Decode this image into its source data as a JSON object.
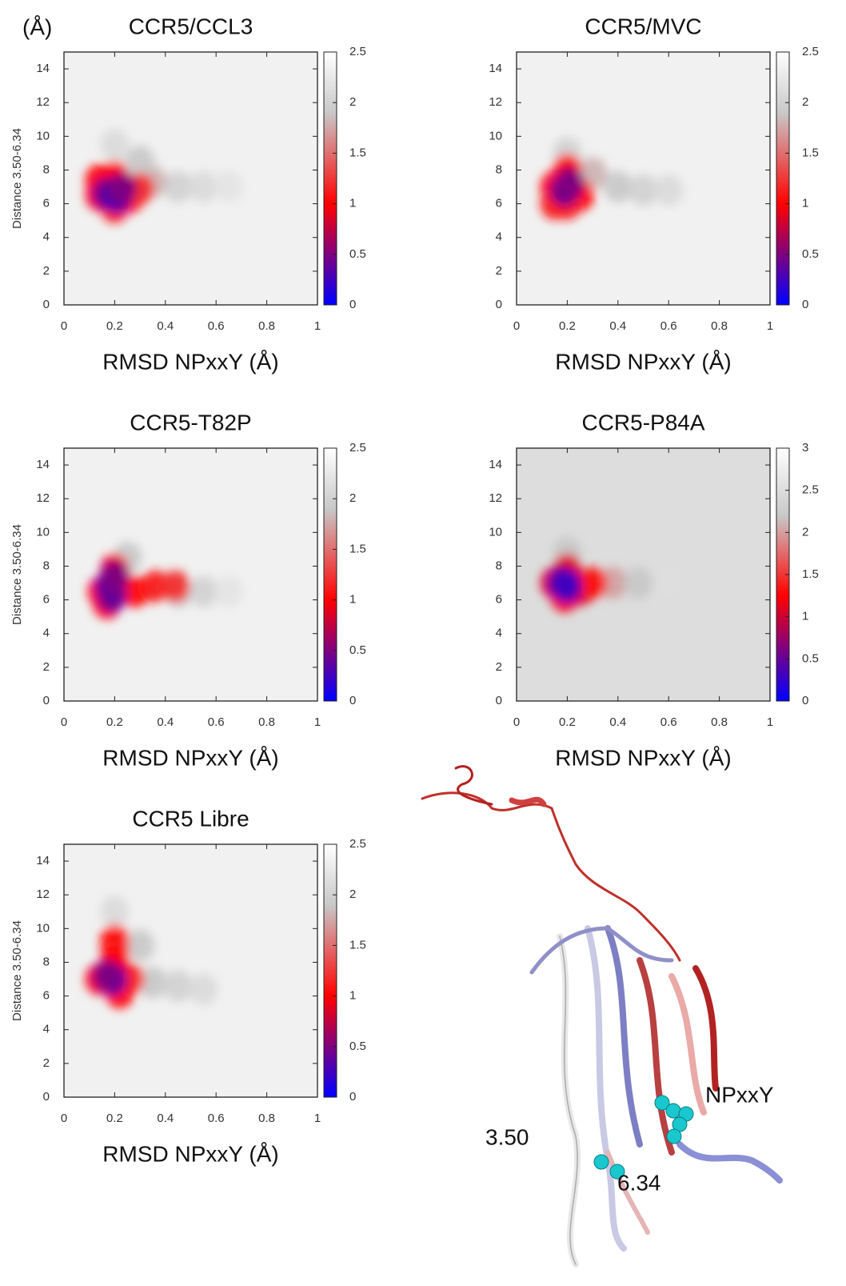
{
  "annotation": "(Å)",
  "chart_data": [
    {
      "type": "heatmap",
      "title": "CCR5/CCL3",
      "xlabel": "RMSD NPxxY (Å)",
      "ylabel": "Distance 3.50-6.34",
      "xlim": [
        0,
        1
      ],
      "xticks": [
        0,
        0.2,
        0.4,
        0.6,
        0.8,
        1
      ],
      "ylim": [
        0,
        15
      ],
      "yticks": [
        0,
        2,
        4,
        6,
        8,
        10,
        12,
        14
      ],
      "clim": [
        0,
        2.5
      ],
      "cticks": [
        0,
        0.5,
        1,
        1.5,
        2,
        2.5
      ],
      "colors": [
        "#0000ff",
        "#ff0000",
        "#c8c8c8",
        "#ffffff"
      ],
      "color_stops": [
        0,
        1,
        1.9,
        2.5
      ],
      "background_value": 2.35,
      "x": [
        0.45,
        0.55,
        0.35,
        0.3,
        0.65,
        0.2,
        0.14,
        0.2,
        0.26,
        0.3,
        0.14,
        0.2,
        0.17,
        0.21,
        0.23
      ],
      "y": [
        7,
        7,
        7.3,
        8.5,
        7,
        9.5,
        6.5,
        7.6,
        6.4,
        6.9,
        7.4,
        5.8,
        6.6,
        6.4,
        6.9
      ],
      "values": [
        2.0,
        2.1,
        1.8,
        1.9,
        2.2,
        2.1,
        1.0,
        1.0,
        1.0,
        1.2,
        1.0,
        1.1,
        0.4,
        0.3,
        0.5
      ]
    },
    {
      "type": "heatmap",
      "title": "CCR5/MVC",
      "xlabel": "RMSD NPxxY (Å)",
      "xlim": [
        0,
        1
      ],
      "xticks": [
        0,
        0.2,
        0.4,
        0.6,
        0.8,
        1
      ],
      "ylim": [
        0,
        15
      ],
      "yticks": [
        0,
        2,
        4,
        6,
        8,
        10,
        12,
        14
      ],
      "clim": [
        0,
        2.5
      ],
      "cticks": [
        0,
        0.5,
        1,
        1.5,
        2,
        2.5
      ],
      "colors": [
        "#0000ff",
        "#ff0000",
        "#c8c8c8",
        "#ffffff"
      ],
      "color_stops": [
        0,
        1,
        1.9,
        2.5
      ],
      "background_value": 2.35,
      "x": [
        0.4,
        0.5,
        0.6,
        0.3,
        0.2,
        0.15,
        0.2,
        0.25,
        0.2,
        0.15,
        0.19,
        0.21
      ],
      "y": [
        7,
        6.8,
        6.8,
        7.8,
        9,
        7,
        8,
        6.5,
        6,
        6,
        6.8,
        7.2
      ],
      "values": [
        1.9,
        2.0,
        2.1,
        1.8,
        2.0,
        1.0,
        1.0,
        1.0,
        1.1,
        1.1,
        0.4,
        0.5
      ]
    },
    {
      "type": "heatmap",
      "title": "CCR5-T82P",
      "xlabel": "RMSD NPxxY (Å)",
      "ylabel": "Distance 3.50-6.34",
      "xlim": [
        0,
        1
      ],
      "xticks": [
        0,
        0.2,
        0.4,
        0.6,
        0.8,
        1
      ],
      "ylim": [
        0,
        15
      ],
      "yticks": [
        0,
        2,
        4,
        6,
        8,
        10,
        12,
        14
      ],
      "clim": [
        0,
        2.5
      ],
      "cticks": [
        0,
        0.5,
        1,
        1.5,
        2,
        2.5
      ],
      "colors": [
        "#0000ff",
        "#ff0000",
        "#c8c8c8",
        "#ffffff"
      ],
      "color_stops": [
        0,
        1,
        1.9,
        2.5
      ],
      "background_value": 2.35,
      "x": [
        0.45,
        0.55,
        0.65,
        0.25,
        0.15,
        0.2,
        0.28,
        0.36,
        0.44,
        0.17,
        0.18,
        0.19,
        0.2
      ],
      "y": [
        6.5,
        6.5,
        6.5,
        8.5,
        6.5,
        7.8,
        6.5,
        6.8,
        6.8,
        5.8,
        6.8,
        6.2,
        7.4
      ],
      "values": [
        1.9,
        2.0,
        2.2,
        1.9,
        1.0,
        1.0,
        1.0,
        1.1,
        1.2,
        1.0,
        0.3,
        0.4,
        0.5
      ]
    },
    {
      "type": "heatmap",
      "title": "CCR5-P84A",
      "xlabel": "RMSD NPxxY (Å)",
      "xlim": [
        0,
        1
      ],
      "xticks": [
        0,
        0.2,
        0.4,
        0.6,
        0.8,
        1
      ],
      "ylim": [
        0,
        15
      ],
      "yticks": [
        0,
        2,
        4,
        6,
        8,
        10,
        12,
        14
      ],
      "clim": [
        0,
        3
      ],
      "cticks": [
        0,
        0.5,
        1,
        1.5,
        2,
        2.5,
        3
      ],
      "colors": [
        "#0000ff",
        "#ff0000",
        "#c8c8c8",
        "#ffffff"
      ],
      "color_stops": [
        0,
        1.25,
        2.2,
        3
      ],
      "background_value": 2.5,
      "x": [
        0.38,
        0.48,
        0.6,
        0.2,
        0.15,
        0.2,
        0.25,
        0.3,
        0.19,
        0.18,
        0.2
      ],
      "y": [
        7,
        7,
        7,
        8.8,
        7,
        7.8,
        6.6,
        7,
        6.2,
        7,
        6.8
      ],
      "values": [
        2.0,
        2.2,
        2.5,
        2.2,
        1.1,
        1.1,
        1.1,
        1.3,
        1.2,
        0.4,
        0.3
      ]
    },
    {
      "type": "heatmap",
      "title": "CCR5 Libre",
      "xlabel": "RMSD NPxxY (Å)",
      "ylabel": "Distance 3.50-6.34",
      "xlim": [
        0,
        1
      ],
      "xticks": [
        0,
        0.2,
        0.4,
        0.6,
        0.8,
        1
      ],
      "ylim": [
        0,
        15
      ],
      "yticks": [
        0,
        2,
        4,
        6,
        8,
        10,
        12,
        14
      ],
      "clim": [
        0,
        2.5
      ],
      "cticks": [
        0,
        0.5,
        1,
        1.5,
        2,
        2.5
      ],
      "colors": [
        "#0000ff",
        "#ff0000",
        "#c8c8c8",
        "#ffffff"
      ],
      "color_stops": [
        0,
        1,
        1.9,
        2.5
      ],
      "background_value": 2.35,
      "x": [
        0.35,
        0.45,
        0.55,
        0.3,
        0.2,
        0.2,
        0.2,
        0.14,
        0.22,
        0.26,
        0.2,
        0.19,
        0.17
      ],
      "y": [
        6.8,
        6.6,
        6.4,
        9,
        11,
        9.3,
        8.6,
        7,
        6.2,
        7,
        7.8,
        7,
        7.2
      ],
      "values": [
        1.9,
        2.0,
        2.1,
        1.9,
        2.1,
        1.0,
        1.1,
        1.0,
        1.0,
        1.1,
        1.0,
        0.3,
        0.5
      ]
    }
  ],
  "structure": {
    "labels": [
      "NPxxY",
      "3.50",
      "6.34"
    ]
  }
}
